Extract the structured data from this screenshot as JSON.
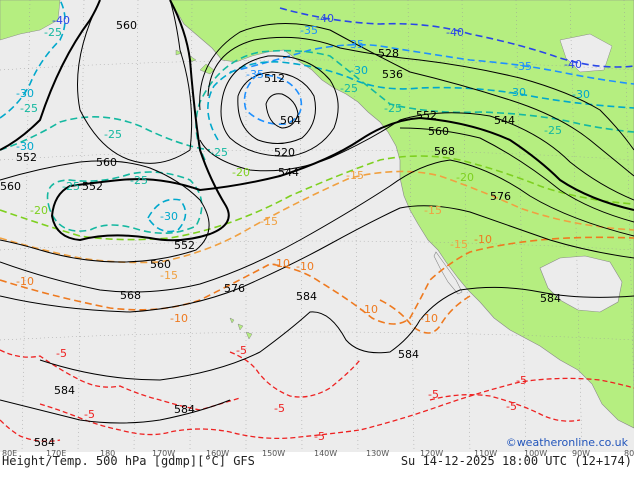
{
  "colors": {
    "ocean": "#ececec",
    "land": "#b5ee80",
    "height_contour": "#000000",
    "temp_m40": "#2a46e8",
    "temp_m35": "#1e90ff",
    "temp_m30": "#00a8cc",
    "temp_m25": "#14b8a0",
    "temp_m20": "#7ed020",
    "temp_m15": "#f0a040",
    "temp_m10": "#ee7a20",
    "temp_m5": "#ee2222",
    "credit": "#2255bb"
  },
  "height_labels": [
    "560",
    "528",
    "536",
    "512",
    "504",
    "552",
    "520",
    "560",
    "552",
    "560",
    "552",
    "544",
    "568",
    "576",
    "552",
    "560",
    "568",
    "576",
    "584",
    "584",
    "584",
    "584",
    "584",
    "584",
    "544",
    "560"
  ],
  "temp_labels": [
    "-40",
    "-40",
    "-35",
    "-35",
    "-35",
    "-30",
    "-40",
    "-30",
    "-25",
    "-30",
    "-25",
    "-25",
    "-20",
    "-25",
    "-25",
    "-30",
    "-30",
    "-25",
    "-20",
    "-15",
    "-15",
    "-15",
    "-15",
    "-10",
    "-15",
    "-10",
    "-10",
    "-10",
    "-10",
    "-10",
    "-5",
    "-5",
    "-5",
    "-5",
    "-5",
    "-5",
    "-5",
    "-5",
    "-10",
    "-30",
    "-35",
    "-40",
    "-25",
    "-25",
    "-20",
    "-25"
  ],
  "longitude_labels": [
    "80E",
    "170E",
    "180",
    "170W",
    "160W",
    "150W",
    "140W",
    "130W",
    "120W",
    "110W",
    "100W",
    "90W",
    "80W"
  ],
  "footer": {
    "title": "Height/Temp. 500 hPa [gdmp][°C] GFS",
    "datetime": "Su 14-12-2025 18:00 UTC (12+174)",
    "credit": "©weatheronline.co.uk"
  }
}
